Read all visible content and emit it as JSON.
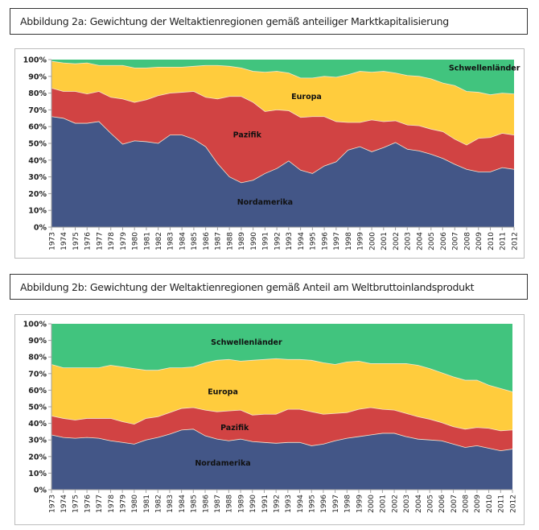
{
  "colors": {
    "nordamerika": "#435687",
    "pazifik": "#D14343",
    "europa": "#FFCC3D",
    "schwellenlaender": "#41C47E",
    "axis": "#a0a0a0",
    "separator": "#f4e6d0"
  },
  "chart_data": [
    {
      "type": "area",
      "stacked": true,
      "title": "Abbildung 2a: Gewichtung  der Weltaktienregionen gemäß  anteiliger  Marktkapitalisierung",
      "xlabel": "",
      "ylabel": "",
      "ylim": [
        0,
        100
      ],
      "yticks": [
        "0%",
        "10%",
        "20%",
        "30%",
        "40%",
        "50%",
        "60%",
        "70%",
        "80%",
        "90%",
        "100%"
      ],
      "grid": false,
      "legend": "inline labels",
      "categories": [
        "1973",
        "1974",
        "1975",
        "1976",
        "1977",
        "1978",
        "1979",
        "1980",
        "1981",
        "1982",
        "1983",
        "1984",
        "1985",
        "1986",
        "1987",
        "1988",
        "1989",
        "1990",
        "1991",
        "1992",
        "1993",
        "1994",
        "1995",
        "1996",
        "1997",
        "1998",
        "1999",
        "2000",
        "2001",
        "2002",
        "2003",
        "2004",
        "2005",
        "2006",
        "2007",
        "2008",
        "2009",
        "2010",
        "2011",
        "2012"
      ],
      "series": [
        {
          "name": "Nordamerika",
          "color_key": "nordamerika",
          "values": [
            66,
            65,
            62,
            62,
            63,
            56,
            49.5,
            51.5,
            51,
            50,
            55,
            55,
            52.5,
            48,
            38,
            30,
            26.5,
            28,
            32,
            35,
            39.5,
            34,
            32,
            36.5,
            39,
            46,
            48,
            45,
            47.5,
            50.5,
            46.5,
            45.5,
            43.5,
            41,
            37.5,
            34.5,
            33,
            33,
            35.5,
            34.5
          ]
        },
        {
          "name": "Pazifik",
          "color_key": "pazifik",
          "values": [
            17,
            16,
            19,
            17.5,
            18,
            21.5,
            27,
            23,
            25,
            28.5,
            25,
            25.5,
            28.5,
            29.5,
            38.5,
            48,
            51.5,
            46.5,
            37,
            35,
            30,
            31.5,
            34,
            29.5,
            24,
            16.5,
            14.5,
            19,
            15.5,
            13,
            14.5,
            15,
            15,
            16,
            15,
            14.5,
            20,
            20.5,
            20.5,
            20.5
          ]
        },
        {
          "name": "Europa",
          "color_key": "europa",
          "values": [
            16,
            17,
            16.5,
            18.5,
            15.5,
            19,
            20,
            20.5,
            19,
            17,
            15.5,
            15,
            15,
            19,
            20,
            18,
            17,
            18.5,
            23.5,
            23,
            22.5,
            23.5,
            23,
            24,
            26.5,
            28.5,
            30.5,
            28.5,
            30,
            28.5,
            29.5,
            29.5,
            30,
            29,
            32,
            32,
            27.5,
            25.5,
            24,
            24.5
          ]
        },
        {
          "name": "Schwellenländer",
          "color_key": "schwellenlaender",
          "values": [
            1,
            2,
            2.5,
            2,
            3.5,
            3.5,
            3.5,
            5,
            5,
            4.5,
            4.5,
            4.5,
            4,
            3.5,
            3.5,
            4,
            5,
            7,
            7.5,
            7,
            8,
            11,
            11,
            10,
            10.5,
            9,
            7,
            7.5,
            7,
            8,
            9.5,
            10,
            11.5,
            14,
            15.5,
            19,
            19.5,
            21,
            20,
            20.5
          ]
        }
      ],
      "annotations": [
        {
          "text": "Schwellenländer",
          "series": "Schwellenländer"
        },
        {
          "text": "Europa",
          "series": "Europa"
        },
        {
          "text": "Pazifik",
          "series": "Pazifik"
        },
        {
          "text": "Nordamerika",
          "series": "Nordamerika"
        }
      ]
    },
    {
      "type": "area",
      "stacked": true,
      "title": "Abbildung 2b: Gewichtung  der Weltaktienregionen gemäß Anteil am Weltbruttoinlandsprodukt",
      "xlabel": "",
      "ylabel": "",
      "ylim": [
        0,
        100
      ],
      "yticks": [
        "0%",
        "10%",
        "20%",
        "30%",
        "40%",
        "50%",
        "60%",
        "70%",
        "80%",
        "90%",
        "100%"
      ],
      "grid": false,
      "legend": "inline labels",
      "categories": [
        "1973",
        "1974",
        "1975",
        "1976",
        "1977",
        "1978",
        "1979",
        "1980",
        "1981",
        "1982",
        "1983",
        "1984",
        "1985",
        "1986",
        "1987",
        "1988",
        "1989",
        "1990",
        "1991",
        "1992",
        "1993",
        "1994",
        "1995",
        "1996",
        "1997",
        "1998",
        "1999",
        "2000",
        "2001",
        "2002",
        "2003",
        "2004",
        "2005",
        "2006",
        "2007",
        "2008",
        "2009",
        "2010",
        "2011",
        "2012"
      ],
      "series": [
        {
          "name": "Nordamerika",
          "color_key": "nordamerika",
          "values": [
            33,
            31.5,
            31,
            31.5,
            31,
            29.5,
            28.5,
            27.5,
            30,
            31.5,
            33.5,
            36,
            36.5,
            32.5,
            30.5,
            29.5,
            30.5,
            29,
            28.5,
            28,
            28.5,
            28.5,
            26.5,
            27.5,
            29.5,
            31,
            32,
            33,
            34,
            34,
            32,
            30.5,
            30,
            29.5,
            27.5,
            25.5,
            26.5,
            25,
            23.5,
            24.5
          ]
        },
        {
          "name": "Pazifik",
          "color_key": "pazifik",
          "values": [
            11.5,
            11.5,
            11,
            11.5,
            12,
            13.5,
            12.5,
            12,
            13,
            12.5,
            13,
            13,
            13,
            15.5,
            16.5,
            18,
            17.5,
            16,
            17,
            17.5,
            20,
            20,
            20.5,
            18,
            16.5,
            15.5,
            16.5,
            16.5,
            14.5,
            14,
            14,
            13.5,
            12.5,
            11,
            10.5,
            11,
            11,
            12,
            12,
            11.5
          ]
        },
        {
          "name": "Europa",
          "color_key": "europa",
          "values": [
            31,
            30.5,
            31.5,
            30.5,
            30.5,
            32,
            33,
            33.5,
            29,
            28,
            27,
            24.5,
            24.5,
            28.5,
            31,
            31,
            29.5,
            33,
            33,
            33.5,
            30,
            30,
            31,
            31,
            29.5,
            30.5,
            29,
            26.5,
            27.5,
            28,
            30,
            31,
            30.5,
            30,
            30,
            29.5,
            28.5,
            26,
            25.5,
            23
          ]
        },
        {
          "name": "Schwellenländer",
          "color_key": "schwellenlaender",
          "values": [
            24.5,
            26.5,
            26.5,
            26.5,
            26.5,
            25,
            26,
            27,
            28,
            28,
            26.5,
            26.5,
            26,
            23.5,
            22,
            21.5,
            22.5,
            22,
            21.5,
            21,
            21.5,
            21.5,
            22,
            23.5,
            24.5,
            23,
            22.5,
            24,
            24,
            24,
            24,
            25,
            27,
            29.5,
            32,
            34,
            34,
            37,
            39,
            41
          ]
        }
      ],
      "annotations": [
        {
          "text": "Schwellenländer",
          "series": "Schwellenländer"
        },
        {
          "text": "Europa",
          "series": "Europa"
        },
        {
          "text": "Pazifik",
          "series": "Pazifik"
        },
        {
          "text": "Nordamerika",
          "series": "Nordamerika"
        }
      ]
    }
  ]
}
